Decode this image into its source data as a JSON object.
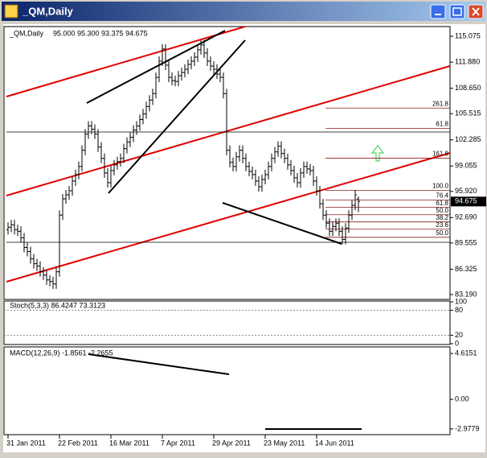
{
  "window": {
    "title": "_QM,Daily"
  },
  "chart_data": [
    {
      "type": "ohlc",
      "title": "_QM,Daily",
      "subtitle": "95.000 95.300 93.375 94.675",
      "categories": [
        "31 Jan 2011",
        null,
        null,
        null,
        null,
        null,
        null,
        null,
        null,
        null,
        null,
        null,
        null,
        null,
        null,
        null,
        "22 Feb 2011",
        null,
        null,
        null,
        null,
        null,
        null,
        null,
        null,
        null,
        null,
        null,
        null,
        null,
        null,
        null,
        "16 Mar 2011",
        null,
        null,
        null,
        null,
        null,
        null,
        null,
        null,
        null,
        null,
        null,
        null,
        null,
        null,
        null,
        "7 Apr 2011",
        null,
        null,
        null,
        null,
        null,
        null,
        null,
        null,
        null,
        null,
        null,
        null,
        null,
        null,
        null,
        "29 Apr 2011",
        null,
        null,
        null,
        null,
        null,
        null,
        null,
        null,
        null,
        null,
        null,
        null,
        null,
        null,
        null,
        "23 May 2011",
        null,
        null,
        null,
        null,
        null,
        null,
        null,
        null,
        null,
        null,
        null,
        null,
        null,
        null,
        null,
        "14 Jun 2011",
        null,
        null,
        null,
        null,
        null,
        null,
        null,
        null,
        null,
        null,
        null,
        null,
        null
      ],
      "open": [
        91.2,
        91.5,
        91.8,
        91.2,
        91.0,
        90.2,
        89.0,
        88.5,
        87.6,
        87.0,
        86.7,
        86.0,
        85.6,
        85.0,
        84.8,
        84.5,
        86.0,
        93.0,
        95.0,
        95.5,
        96.0,
        97.2,
        98.0,
        99.0,
        101.0,
        103.0,
        104.0,
        103.6,
        103.0,
        101.4,
        100.0,
        98.2,
        97.0,
        98.5,
        99.2,
        99.6,
        100.0,
        101.2,
        102.0,
        102.6,
        103.5,
        104.0,
        104.8,
        105.5,
        106.4,
        107.2,
        108.0,
        110.0,
        112.0,
        113.5,
        111.5,
        110.0,
        109.6,
        109.5,
        110.2,
        110.6,
        111.0,
        111.6,
        112.0,
        112.5,
        113.4,
        114.0,
        113.0,
        112.0,
        111.4,
        111.0,
        110.4,
        110.0,
        108.0,
        101.0,
        99.5,
        99.0,
        100.2,
        101.0,
        100.0,
        99.0,
        98.4,
        98.0,
        97.2,
        96.5,
        97.4,
        98.0,
        99.0,
        100.0,
        100.8,
        101.5,
        100.6,
        100.0,
        99.2,
        98.5,
        97.6,
        97.0,
        98.2,
        99.0,
        98.7,
        98.5,
        97.2,
        96.0,
        94.4,
        93.0,
        92.0,
        91.0,
        91.6,
        92.0,
        91.0,
        90.0,
        91.4,
        93.0,
        94.2,
        95.0
      ],
      "high": [
        92.1,
        92.4,
        92.4,
        91.8,
        91.6,
        90.8,
        89.6,
        89.1,
        88.2,
        87.6,
        87.3,
        86.6,
        86.2,
        85.6,
        85.4,
        86.6,
        93.6,
        95.6,
        96.1,
        96.6,
        97.8,
        98.6,
        99.6,
        101.6,
        103.6,
        104.6,
        104.6,
        104.2,
        103.6,
        102.0,
        100.6,
        98.8,
        99.1,
        99.8,
        100.2,
        100.6,
        101.8,
        102.6,
        103.2,
        104.1,
        104.6,
        105.4,
        106.1,
        107.0,
        107.8,
        108.6,
        110.6,
        112.6,
        114.1,
        114.1,
        112.1,
        110.6,
        110.2,
        110.8,
        111.2,
        111.6,
        112.2,
        112.6,
        113.1,
        114.0,
        114.6,
        114.6,
        113.6,
        112.6,
        112.0,
        111.6,
        111.0,
        110.6,
        108.6,
        101.6,
        100.1,
        100.8,
        101.6,
        101.6,
        100.6,
        99.6,
        99.0,
        98.6,
        97.8,
        98.0,
        98.6,
        99.6,
        100.6,
        101.4,
        102.1,
        102.1,
        101.2,
        100.6,
        99.8,
        99.1,
        98.2,
        98.8,
        99.6,
        99.6,
        99.3,
        99.1,
        97.8,
        96.6,
        95.0,
        93.6,
        92.6,
        92.2,
        92.6,
        92.6,
        91.6,
        92.0,
        93.6,
        94.8,
        96.1,
        95.3
      ],
      "low": [
        90.6,
        90.9,
        90.6,
        90.4,
        89.6,
        88.4,
        87.9,
        87.0,
        86.4,
        86.1,
        85.4,
        85.0,
        84.4,
        84.2,
        83.9,
        83.9,
        85.4,
        92.4,
        94.4,
        94.9,
        95.4,
        96.6,
        97.4,
        98.4,
        100.4,
        102.4,
        103.0,
        102.4,
        100.8,
        99.4,
        97.6,
        96.4,
        96.4,
        97.9,
        98.6,
        99.0,
        99.4,
        100.6,
        101.4,
        102.0,
        102.9,
        103.4,
        104.2,
        104.9,
        105.8,
        106.6,
        107.4,
        109.4,
        111.4,
        110.9,
        109.4,
        109.0,
        108.9,
        108.9,
        109.6,
        110.0,
        110.4,
        111.0,
        111.4,
        111.9,
        112.8,
        112.4,
        111.4,
        110.8,
        110.4,
        109.8,
        109.4,
        107.4,
        100.4,
        98.9,
        98.4,
        98.4,
        99.6,
        99.4,
        98.4,
        97.8,
        97.4,
        96.6,
        95.9,
        95.9,
        96.8,
        97.4,
        98.4,
        99.4,
        100.2,
        100.0,
        99.4,
        98.6,
        97.9,
        97.0,
        96.4,
        96.4,
        97.6,
        98.1,
        97.9,
        96.6,
        95.4,
        93.8,
        92.4,
        91.4,
        90.4,
        90.4,
        91.0,
        90.4,
        89.4,
        89.4,
        90.8,
        92.4,
        93.6,
        93.375
      ],
      "close": [
        91.5,
        91.8,
        91.2,
        91.0,
        90.2,
        89.0,
        88.5,
        87.6,
        87.0,
        86.7,
        86.0,
        85.6,
        85.0,
        84.8,
        84.5,
        86.0,
        93.0,
        95.0,
        95.5,
        96.0,
        97.2,
        98.0,
        99.0,
        101.0,
        103.0,
        104.0,
        103.6,
        103.0,
        101.4,
        100.0,
        98.2,
        97.0,
        98.5,
        99.2,
        99.6,
        100.0,
        101.2,
        102.0,
        102.6,
        103.5,
        104.0,
        104.8,
        105.5,
        106.4,
        107.2,
        108.0,
        110.0,
        112.0,
        113.5,
        111.5,
        110.0,
        109.6,
        109.5,
        110.2,
        110.6,
        111.0,
        111.6,
        112.0,
        112.5,
        113.4,
        114.0,
        113.0,
        112.0,
        111.4,
        111.0,
        110.4,
        110.0,
        108.0,
        101.0,
        99.5,
        99.0,
        100.2,
        101.0,
        100.0,
        99.0,
        98.4,
        98.0,
        97.2,
        96.5,
        97.4,
        98.0,
        99.0,
        100.0,
        100.8,
        101.5,
        100.6,
        100.0,
        99.2,
        98.5,
        97.6,
        97.0,
        98.2,
        99.0,
        98.7,
        98.5,
        97.2,
        96.0,
        94.4,
        93.0,
        92.0,
        91.0,
        91.6,
        92.0,
        91.0,
        90.0,
        91.4,
        93.0,
        94.2,
        95.5,
        94.675
      ],
      "color": "#000000",
      "ylim": [
        82.59,
        116.27
      ],
      "yticks": [
        115.075,
        {
          "value": 111.88,
          "label": "111.880"
        },
        {
          "value": 108.65,
          "label": "108.650"
        },
        105.515,
        102.285,
        99.055,
        {
          "value": 95.92,
          "label": "95.920"
        },
        {
          "value": 92.69,
          "label": "92.690"
        },
        89.555,
        86.325,
        {
          "value": 83.19,
          "label": "83.190"
        }
      ],
      "fib_levels": [
        {
          "label": "261.8",
          "value": 106.21
        },
        {
          "label": "61.8",
          "value": 103.7
        },
        {
          "label": "161.8",
          "value": 100.03
        },
        {
          "label": "100.0",
          "value": 96.04
        },
        {
          "label": "76.4",
          "value": 94.85
        },
        {
          "label": "61.8",
          "value": 93.95
        },
        {
          "label": "50.0",
          "value": 93.05
        },
        {
          "label": "38.2",
          "value": 92.16
        },
        {
          "label": "23.6",
          "value": 91.26
        },
        {
          "label": "50.0",
          "value": 90.26
        }
      ],
      "fib_color": "#8b1a1a"
    },
    {
      "type": "indicator",
      "title": "Stoch(5,3,3) 86.4247 73.3123",
      "ylim": [
        -2,
        102
      ],
      "yticks": [
        100,
        80,
        20,
        0
      ],
      "levels": [
        80,
        20
      ]
    },
    {
      "type": "indicator",
      "title": "MACD(12,26,9) -1.8561 -2.2655",
      "ylim": [
        -3.555,
        5.275
      ],
      "yticks": [
        4.6151,
        {
          "value": 0,
          "label": "0.00"
        },
        -2.9779
      ]
    }
  ]
}
